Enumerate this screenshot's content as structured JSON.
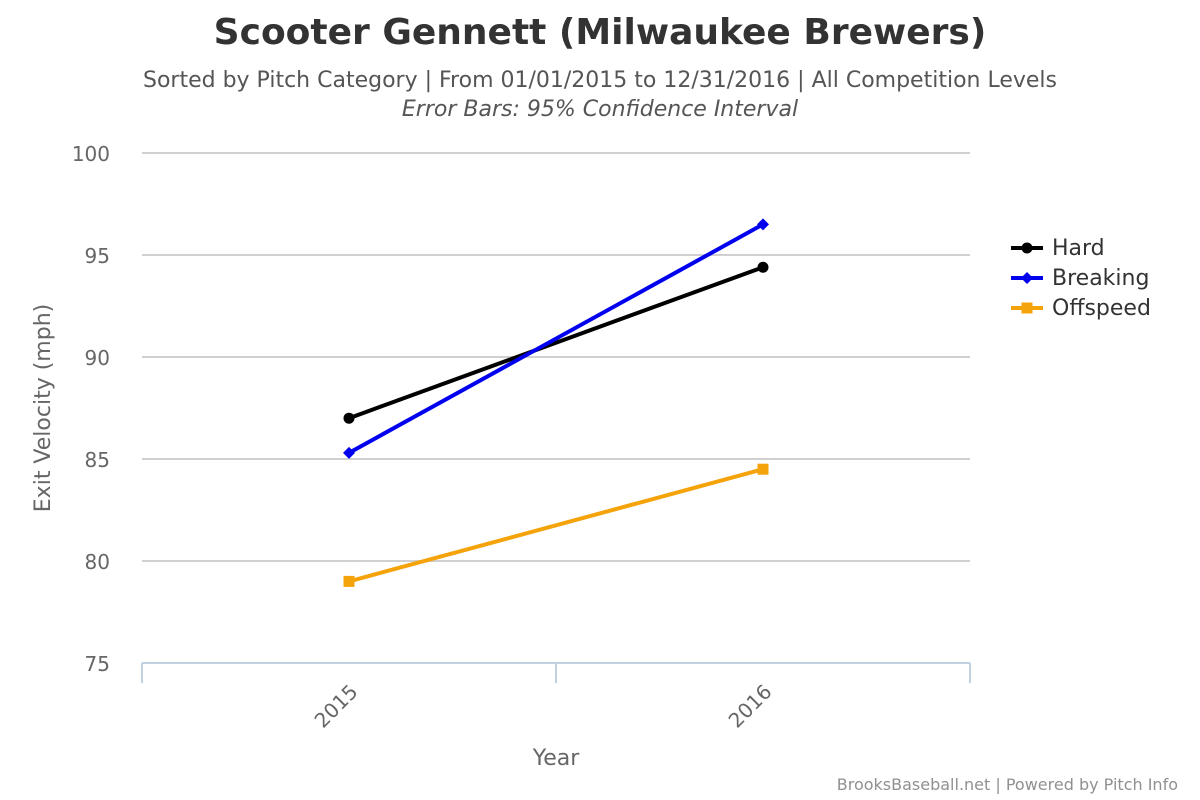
{
  "chart_data": {
    "type": "line",
    "title": "Scooter Gennett (Milwaukee Brewers)",
    "subtitle": "Sorted by Pitch Category | From 01/01/2015 to 12/31/2016 | All Competition Levels",
    "subtitle2": "Error Bars: 95% Confidence Interval",
    "xlabel": "Year",
    "ylabel": "Exit Velocity (mph)",
    "categories": [
      "2015",
      "2016"
    ],
    "ylim": [
      75,
      100
    ],
    "yticks": [
      75,
      80,
      85,
      90,
      95,
      100
    ],
    "grid": true,
    "legend_position": "right",
    "series": [
      {
        "name": "Hard",
        "values": [
          87.0,
          94.4
        ],
        "color": "#000000",
        "marker": "circle"
      },
      {
        "name": "Breaking",
        "values": [
          85.3,
          96.5
        ],
        "color": "#0000ee",
        "marker": "diamond"
      },
      {
        "name": "Offspeed",
        "values": [
          79.0,
          84.5
        ],
        "color": "#f5a30a",
        "marker": "square"
      }
    ]
  },
  "credit": "BrooksBaseball.net | Powered by Pitch Info"
}
